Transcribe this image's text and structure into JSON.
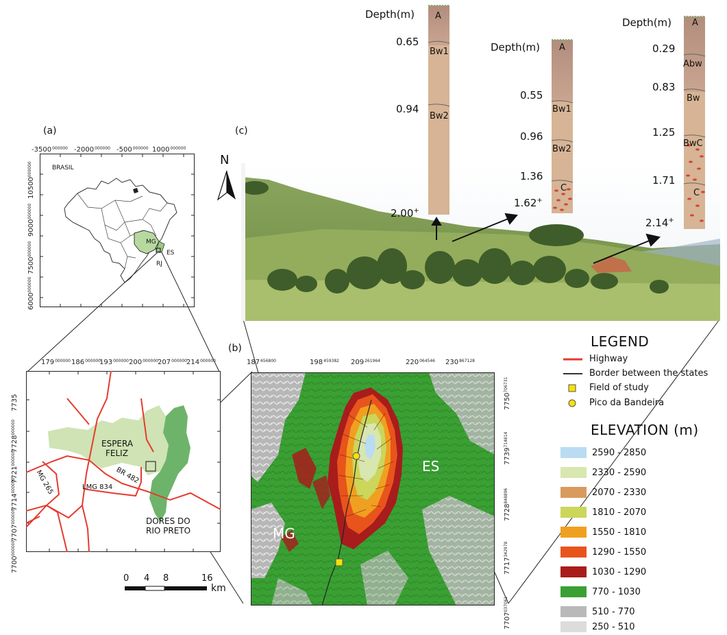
{
  "panels": {
    "a_label": "(a)",
    "b_label": "(b)",
    "c_label": "(c)"
  },
  "brasil_map": {
    "country_label": "BRASIL",
    "state_mg": "MG",
    "state_es": "ES",
    "state_rj": "RJ",
    "x_ticks": [
      {
        "value": "-3500",
        "exp": "000000"
      },
      {
        "value": "-2000",
        "exp": "000000"
      },
      {
        "value": "-500",
        "exp": "000000"
      },
      {
        "value": "1000",
        "exp": "000000"
      }
    ],
    "y_ticks": [
      {
        "value": "10500",
        "exp": "000000"
      },
      {
        "value": "9000",
        "exp": "000000"
      },
      {
        "value": "7500",
        "exp": "000000"
      },
      {
        "value": "6000",
        "exp": "000000"
      }
    ]
  },
  "region_map": {
    "x_ticks": [
      {
        "value": "179",
        "exp": "000000"
      },
      {
        "value": "186",
        "exp": "000000"
      },
      {
        "value": "193",
        "exp": "000000"
      },
      {
        "value": "200",
        "exp": "000000"
      },
      {
        "value": "207",
        "exp": "000000"
      },
      {
        "value": "214",
        "exp": "000000"
      }
    ],
    "y_ticks": [
      {
        "value": "7735",
        "exp": ""
      },
      {
        "value": "7728",
        "exp": "000000"
      },
      {
        "value": "7721",
        "exp": "000000"
      },
      {
        "value": "7714",
        "exp": "000000"
      },
      {
        "value": "7707",
        "exp": "000000"
      },
      {
        "value": "7700",
        "exp": "000000"
      }
    ],
    "town1_line1": "ESPERA",
    "town1_line2": "FELIZ",
    "town2_line1": "DORES DO",
    "town2_line2": "RIO PRETO",
    "road_br": "BR 482",
    "road_lmg": "LMG 834",
    "road_mg": "MG 265",
    "scale_labels": [
      "0",
      "4",
      "8",
      "16"
    ],
    "scale_unit": "km"
  },
  "north_arrow": "N",
  "elevation_map": {
    "x_ticks": [
      {
        "value": "187",
        "exp": "656800"
      },
      {
        "value": "198",
        "exp": "459382"
      },
      {
        "value": "209",
        "exp": "261964"
      },
      {
        "value": "220",
        "exp": "064546"
      },
      {
        "value": "230",
        "exp": "867128"
      }
    ],
    "y_ticks": [
      {
        "value": "7750",
        "exp": "706731"
      },
      {
        "value": "7739",
        "exp": "714814"
      },
      {
        "value": "7728",
        "exp": "848896"
      },
      {
        "value": "7717",
        "exp": "342978"
      },
      {
        "value": "7707",
        "exp": "037061"
      }
    ],
    "label_mg": "MG",
    "label_es": "ES"
  },
  "legend": {
    "title": "LEGEND",
    "items": [
      {
        "label": "Highway",
        "color": "#e53a2e"
      },
      {
        "label": "Border between the states",
        "color": "#333333"
      },
      {
        "label": "Field of study",
        "color": "#f5e10a"
      },
      {
        "label": "Pico da Bandeira",
        "color": "#f5e10a"
      }
    ]
  },
  "elevation_legend": {
    "title": "ELEVATION (m)",
    "classes": [
      {
        "label": "2590 - 2850",
        "color": "#b9dcf2"
      },
      {
        "label": "2330 - 2590",
        "color": "#d8e6b0"
      },
      {
        "label": "2070 - 2330",
        "color": "#d99a5e"
      },
      {
        "label": "1810 - 2070",
        "color": "#cbd65a"
      },
      {
        "label": "1550 - 1810",
        "color": "#f0a020"
      },
      {
        "label": "1290 - 1550",
        "color": "#e8541c"
      },
      {
        "label": "1030 - 1290",
        "color": "#a81c1c"
      },
      {
        "label": "770 - 1030",
        "color": "#3aa033"
      },
      {
        "label": "510 - 770",
        "color": "#b9b9b9"
      },
      {
        "label": "250 - 510",
        "color": "#dcdcdc"
      }
    ]
  },
  "profiles": [
    {
      "depth_title": "Depth(m)",
      "horizons": [
        "A",
        "Bw1",
        "Bw2"
      ],
      "depths": [
        "0.65",
        "0.94"
      ],
      "bottom": "2.00",
      "bottom_sup": "+"
    },
    {
      "depth_title": "Depth(m)",
      "horizons": [
        "A",
        "Bw1",
        "Bw2",
        "C"
      ],
      "depths": [
        "0.55",
        "0.96",
        "1.36"
      ],
      "bottom": "1.62",
      "bottom_sup": "+"
    },
    {
      "depth_title": "Depth(m)",
      "horizons": [
        "A",
        "Abw",
        "Bw",
        "BwC",
        "C"
      ],
      "depths": [
        "0.29",
        "0.83",
        "1.25",
        "1.71"
      ],
      "bottom": "2.14",
      "bottom_sup": "+"
    }
  ]
}
